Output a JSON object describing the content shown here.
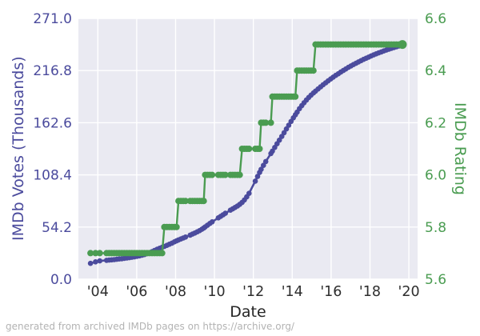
{
  "caption": "generated from archived IMDb pages on https://archive.org/",
  "colors": {
    "votes": "#4b4b9d",
    "rating": "#4a9c51",
    "plot_bg": "#eaeaf2",
    "grid": "#ffffff",
    "xtick_text": "#2e2e2e"
  },
  "chart_data": {
    "type": "line",
    "title": "",
    "xlabel": "Date",
    "ylabel_left": "IMDb Votes (Thousands)",
    "ylabel_right": "IMDb Rating",
    "xlim": [
      2003.0,
      2020.45
    ],
    "ylim_left": [
      0.0,
      271.0
    ],
    "ylim_right": [
      5.6,
      6.6
    ],
    "grid": true,
    "legend": false,
    "xticks": {
      "values": [
        2004,
        2006,
        2008,
        2010,
        2012,
        2014,
        2016,
        2018,
        2020
      ],
      "labels": [
        "'04",
        "'06",
        "'08",
        "'10",
        "'12",
        "'14",
        "'16",
        "'18",
        "'20"
      ]
    },
    "yticks_left": {
      "values": [
        271.0,
        216.8,
        162.6,
        108.4,
        54.2,
        0.0
      ],
      "labels": [
        "271.0",
        "216.8",
        "162.6",
        "108.4",
        "54.2",
        "0.0"
      ]
    },
    "yticks_right": {
      "values": [
        6.6,
        6.4,
        6.2,
        6.0,
        5.8,
        5.6
      ],
      "labels": [
        "6.6",
        "6.4",
        "6.2",
        "6.0",
        "5.8",
        "5.6"
      ]
    },
    "series": [
      {
        "name": "IMDb Votes (Thousands)",
        "axis": "left",
        "color": "#4b4b9d"
      },
      {
        "name": "IMDb Rating",
        "axis": "right",
        "color": "#4a9c51"
      }
    ],
    "snapshots_format": [
      "year",
      "votes_thousands",
      "rating"
    ],
    "snapshots": [
      [
        2003.62,
        16.5,
        5.7
      ],
      [
        2003.88,
        18.0,
        5.7
      ],
      [
        2004.1,
        19.0,
        5.7
      ],
      [
        2004.45,
        19.6,
        5.7
      ],
      [
        2004.58,
        19.9,
        5.7
      ],
      [
        2004.71,
        20.1,
        5.7
      ],
      [
        2004.84,
        20.4,
        5.7
      ],
      [
        2004.97,
        20.7,
        5.7
      ],
      [
        2005.1,
        21.0,
        5.7
      ],
      [
        2005.23,
        21.3,
        5.7
      ],
      [
        2005.36,
        21.7,
        5.7
      ],
      [
        2005.49,
        22.0,
        5.7
      ],
      [
        2005.62,
        22.4,
        5.7
      ],
      [
        2005.75,
        22.8,
        5.7
      ],
      [
        2005.88,
        23.2,
        5.7
      ],
      [
        2006.01,
        23.8,
        5.7
      ],
      [
        2006.14,
        24.3,
        5.7
      ],
      [
        2006.27,
        24.9,
        5.7
      ],
      [
        2006.4,
        25.6,
        5.7
      ],
      [
        2006.53,
        26.5,
        5.7
      ],
      [
        2006.66,
        27.5,
        5.7
      ],
      [
        2006.79,
        28.7,
        5.7
      ],
      [
        2006.92,
        29.9,
        5.7
      ],
      [
        2007.05,
        31.1,
        5.7
      ],
      [
        2007.18,
        32.2,
        5.7
      ],
      [
        2007.31,
        33.2,
        5.7
      ],
      [
        2007.42,
        34.1,
        5.8
      ],
      [
        2007.55,
        35.2,
        5.8
      ],
      [
        2007.68,
        36.3,
        5.8
      ],
      [
        2007.81,
        37.5,
        5.8
      ],
      [
        2007.94,
        38.8,
        5.8
      ],
      [
        2008.05,
        39.9,
        5.8
      ],
      [
        2008.15,
        40.8,
        5.9
      ],
      [
        2008.27,
        41.8,
        5.9
      ],
      [
        2008.39,
        42.8,
        5.9
      ],
      [
        2008.51,
        43.8,
        5.9
      ],
      [
        2008.75,
        45.8,
        5.9
      ],
      [
        2008.87,
        46.9,
        5.9
      ],
      [
        2008.99,
        48.0,
        5.9
      ],
      [
        2009.11,
        49.2,
        5.9
      ],
      [
        2009.23,
        50.5,
        5.9
      ],
      [
        2009.35,
        51.9,
        5.9
      ],
      [
        2009.45,
        53.2,
        5.9
      ],
      [
        2009.52,
        54.3,
        6.0
      ],
      [
        2009.64,
        56.1,
        6.0
      ],
      [
        2009.76,
        57.9,
        6.0
      ],
      [
        2009.88,
        59.6,
        6.0
      ],
      [
        2010.2,
        63.8,
        6.0
      ],
      [
        2010.32,
        65.3,
        6.0
      ],
      [
        2010.44,
        66.9,
        6.0
      ],
      [
        2010.56,
        68.5,
        6.0
      ],
      [
        2010.82,
        71.7,
        6.0
      ],
      [
        2010.94,
        73.1,
        6.0
      ],
      [
        2011.06,
        74.6,
        6.0
      ],
      [
        2011.18,
        76.1,
        6.0
      ],
      [
        2011.3,
        77.8,
        6.0
      ],
      [
        2011.42,
        79.8,
        6.1
      ],
      [
        2011.54,
        82.4,
        6.1
      ],
      [
        2011.66,
        85.5,
        6.1
      ],
      [
        2011.78,
        89.2,
        6.1
      ],
      [
        2012.1,
        101.9,
        6.1
      ],
      [
        2012.22,
        106.8,
        6.1
      ],
      [
        2012.32,
        110.9,
        6.1
      ],
      [
        2012.4,
        114.1,
        6.2
      ],
      [
        2012.52,
        118.3,
        6.2
      ],
      [
        2012.64,
        122.3,
        6.2
      ],
      [
        2012.9,
        130.6,
        6.2
      ],
      [
        2012.98,
        133.1,
        6.3
      ],
      [
        2013.1,
        136.9,
        6.3
      ],
      [
        2013.22,
        140.7,
        6.3
      ],
      [
        2013.34,
        144.5,
        6.3
      ],
      [
        2013.46,
        148.3,
        6.3
      ],
      [
        2013.58,
        152.2,
        6.3
      ],
      [
        2013.7,
        156.1,
        6.3
      ],
      [
        2013.82,
        160.0,
        6.3
      ],
      [
        2013.94,
        163.9,
        6.3
      ],
      [
        2014.06,
        167.7,
        6.3
      ],
      [
        2014.16,
        170.8,
        6.3
      ],
      [
        2014.25,
        173.6,
        6.4
      ],
      [
        2014.37,
        177.2,
        6.4
      ],
      [
        2014.49,
        180.4,
        6.4
      ],
      [
        2014.61,
        183.4,
        6.4
      ],
      [
        2014.73,
        186.2,
        6.4
      ],
      [
        2014.85,
        188.9,
        6.4
      ],
      [
        2014.97,
        191.3,
        6.4
      ],
      [
        2015.09,
        193.5,
        6.4
      ],
      [
        2015.2,
        195.4,
        6.5
      ],
      [
        2015.33,
        197.7,
        6.5
      ],
      [
        2015.46,
        199.9,
        6.5
      ],
      [
        2015.59,
        202.1,
        6.5
      ],
      [
        2015.72,
        204.1,
        6.5
      ],
      [
        2015.85,
        206.1,
        6.5
      ],
      [
        2015.98,
        208.1,
        6.5
      ],
      [
        2016.11,
        210.0,
        6.5
      ],
      [
        2016.24,
        211.8,
        6.5
      ],
      [
        2016.37,
        213.5,
        6.5
      ],
      [
        2016.5,
        215.2,
        6.5
      ],
      [
        2016.63,
        216.9,
        6.5
      ],
      [
        2016.76,
        218.5,
        6.5
      ],
      [
        2016.89,
        220.1,
        6.5
      ],
      [
        2017.02,
        221.6,
        6.5
      ],
      [
        2017.15,
        223.0,
        6.5
      ],
      [
        2017.28,
        224.4,
        6.5
      ],
      [
        2017.41,
        225.8,
        6.5
      ],
      [
        2017.54,
        227.1,
        6.5
      ],
      [
        2017.67,
        228.4,
        6.5
      ],
      [
        2017.8,
        229.6,
        6.5
      ],
      [
        2017.93,
        230.8,
        6.5
      ],
      [
        2018.06,
        232.0,
        6.5
      ],
      [
        2018.19,
        233.1,
        6.5
      ],
      [
        2018.32,
        234.2,
        6.5
      ],
      [
        2018.45,
        235.2,
        6.5
      ],
      [
        2018.58,
        236.2,
        6.5
      ],
      [
        2018.71,
        237.2,
        6.5
      ],
      [
        2018.84,
        238.1,
        6.5
      ],
      [
        2018.97,
        239.0,
        6.5
      ],
      [
        2019.1,
        239.9,
        6.5
      ],
      [
        2019.23,
        240.7,
        6.5
      ],
      [
        2019.36,
        241.5,
        6.5
      ],
      [
        2019.49,
        242.3,
        6.5
      ],
      [
        2019.67,
        243.3,
        6.5
      ]
    ]
  }
}
